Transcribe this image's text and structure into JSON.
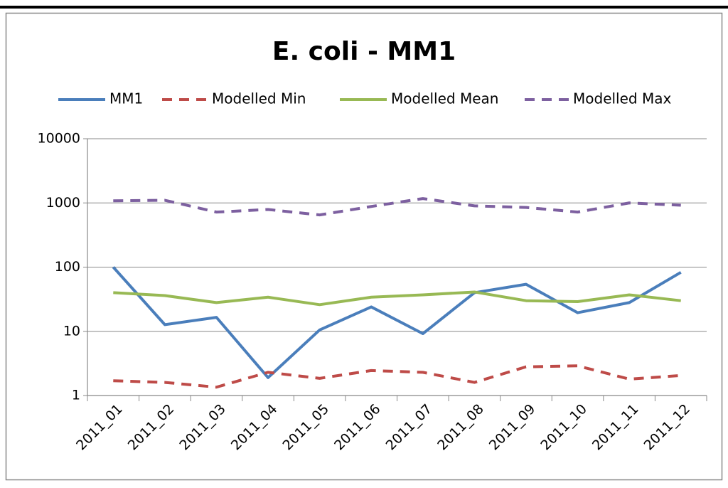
{
  "chart_data": {
    "type": "line",
    "title": "E. coli - MM1",
    "categories": [
      "2011_01",
      "2011_02",
      "2011_03",
      "2011_04",
      "2011_05",
      "2011_06",
      "2011_07",
      "2011_08",
      "2011_09",
      "2011_10",
      "2011_11",
      "2011_12"
    ],
    "series": [
      {
        "name": "MM1",
        "color": "#4a7ebb",
        "dashed": false,
        "values": [
          100,
          12.7,
          16.5,
          1.9,
          10.5,
          24,
          9.2,
          40,
          54,
          19.5,
          28,
          83
        ]
      },
      {
        "name": "Modelled Min",
        "color": "#be4b48",
        "dashed": true,
        "values": [
          1.7,
          1.6,
          1.35,
          2.3,
          1.85,
          2.45,
          2.3,
          1.6,
          2.8,
          2.9,
          1.8,
          2.05
        ]
      },
      {
        "name": "Modelled Mean",
        "color": "#98b954",
        "dashed": false,
        "values": [
          40,
          36,
          28,
          34,
          26,
          34,
          37,
          41,
          30,
          29,
          37,
          30
        ]
      },
      {
        "name": "Modelled Max",
        "color": "#7d60a0",
        "dashed": true,
        "values": [
          1080,
          1100,
          720,
          790,
          650,
          880,
          1170,
          900,
          850,
          720,
          1000,
          920
        ]
      }
    ],
    "ylim": [
      1,
      10000
    ],
    "yticks": [
      1,
      10,
      100,
      1000,
      10000
    ],
    "log_scale": true,
    "grid": true,
    "legend": "top"
  }
}
